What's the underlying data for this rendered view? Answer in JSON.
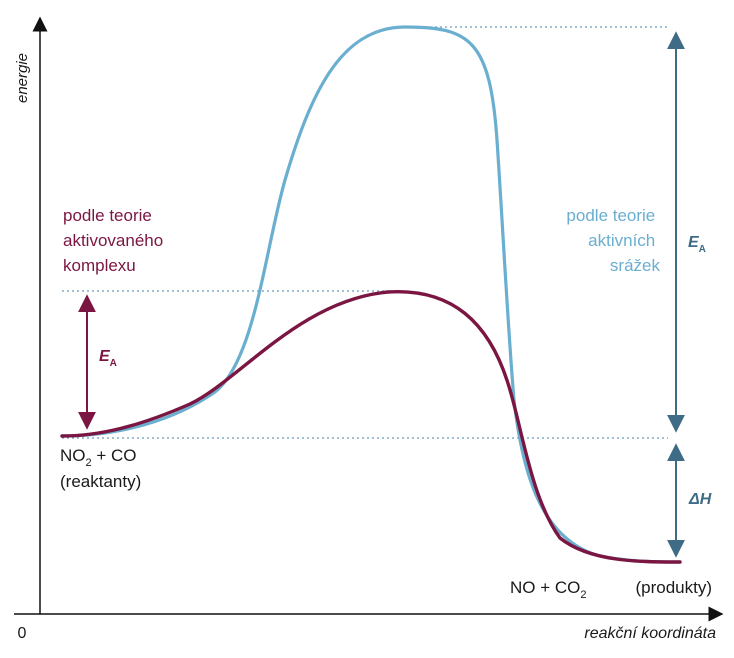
{
  "axes": {
    "y_label": "energie",
    "x_label": "reakční koordináta",
    "origin": "0"
  },
  "reactants": {
    "formula_prefix": "NO",
    "formula_sub": "2",
    "formula_suffix": " + CO",
    "note": "(reaktanty)"
  },
  "products": {
    "formula_prefix": "NO + CO",
    "formula_sub": "2",
    "note": "(produkty)"
  },
  "theories": {
    "complex": {
      "lines": [
        "podle teorie",
        "aktivovaného",
        "komplexu"
      ],
      "color": "#7a1641"
    },
    "collisions": {
      "lines": [
        "podle teorie",
        "aktivních",
        "srážek"
      ],
      "color": "#6aaed0"
    }
  },
  "energy_labels": {
    "ea_main": "E",
    "ea_sub": "A",
    "dh": "ΔH"
  },
  "colors": {
    "axis": "#111111",
    "guide": "#6a9ab8",
    "arrow_blue": "#3e6b86",
    "arrow_maroon": "#7a1641",
    "text": "#1a1a1a"
  }
}
